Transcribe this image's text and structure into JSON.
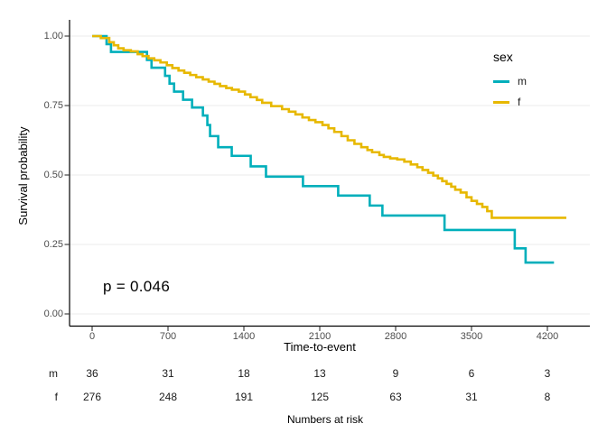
{
  "chart_data": {
    "type": "line",
    "subtype": "kaplan-meier-step-survival",
    "title": "",
    "xlabel": "Time-to-event",
    "ylabel": "Survival probability",
    "xlim": [
      -210,
      4590
    ],
    "ylim": [
      0,
      1
    ],
    "xticks": [
      0,
      700,
      1400,
      2100,
      2800,
      3500,
      4200
    ],
    "yticks": [
      {
        "value": 0.0,
        "label": "0.00"
      },
      {
        "value": 0.25,
        "label": "0.25"
      },
      {
        "value": 0.5,
        "label": "0.50"
      },
      {
        "value": 0.75,
        "label": "0.75"
      },
      {
        "value": 1.0,
        "label": "1.00"
      }
    ],
    "grid": "horizontal-only",
    "annotation": {
      "text": "p = 0.046",
      "t": 100,
      "s": 0.097
    },
    "legend": {
      "title": "sex",
      "position": "right-top"
    },
    "colors": {
      "grid": "#ebebeb",
      "axis": "#000000",
      "tick": "#333333",
      "tick_label": "#4d4d4d"
    },
    "series": [
      {
        "name": "m",
        "color": "#00AFBB",
        "end_t": 4261,
        "points": [
          [
            0,
            1.0
          ],
          [
            133,
            0.971
          ],
          [
            174,
            0.943
          ],
          [
            506,
            0.914
          ],
          [
            548,
            0.886
          ],
          [
            673,
            0.857
          ],
          [
            714,
            0.829
          ],
          [
            756,
            0.8
          ],
          [
            839,
            0.771
          ],
          [
            922,
            0.743
          ],
          [
            1022,
            0.714
          ],
          [
            1063,
            0.68
          ],
          [
            1088,
            0.64
          ],
          [
            1163,
            0.6
          ],
          [
            1288,
            0.569
          ],
          [
            1463,
            0.531
          ],
          [
            1604,
            0.494
          ],
          [
            1945,
            0.46
          ],
          [
            2270,
            0.426
          ],
          [
            2561,
            0.39
          ],
          [
            2678,
            0.354
          ],
          [
            3251,
            0.302
          ],
          [
            3899,
            0.236
          ],
          [
            3999,
            0.185
          ]
        ]
      },
      {
        "name": "f",
        "color": "#E7B800",
        "end_t": 4375,
        "points": [
          [
            0,
            1.0
          ],
          [
            80,
            0.993
          ],
          [
            158,
            0.978
          ],
          [
            200,
            0.967
          ],
          [
            241,
            0.956
          ],
          [
            290,
            0.949
          ],
          [
            357,
            0.945
          ],
          [
            420,
            0.935
          ],
          [
            465,
            0.928
          ],
          [
            520,
            0.92
          ],
          [
            573,
            0.913
          ],
          [
            630,
            0.905
          ],
          [
            689,
            0.895
          ],
          [
            740,
            0.885
          ],
          [
            797,
            0.876
          ],
          [
            850,
            0.868
          ],
          [
            905,
            0.86
          ],
          [
            960,
            0.852
          ],
          [
            1021,
            0.844
          ],
          [
            1075,
            0.836
          ],
          [
            1129,
            0.828
          ],
          [
            1180,
            0.82
          ],
          [
            1237,
            0.813
          ],
          [
            1290,
            0.807
          ],
          [
            1353,
            0.8
          ],
          [
            1410,
            0.79
          ],
          [
            1461,
            0.78
          ],
          [
            1520,
            0.77
          ],
          [
            1569,
            0.76
          ],
          [
            1652,
            0.748
          ],
          [
            1752,
            0.737
          ],
          [
            1815,
            0.728
          ],
          [
            1876,
            0.718
          ],
          [
            1940,
            0.707
          ],
          [
            2000,
            0.698
          ],
          [
            2060,
            0.69
          ],
          [
            2125,
            0.68
          ],
          [
            2180,
            0.668
          ],
          [
            2234,
            0.655
          ],
          [
            2300,
            0.64
          ],
          [
            2358,
            0.625
          ],
          [
            2420,
            0.612
          ],
          [
            2483,
            0.6
          ],
          [
            2540,
            0.59
          ],
          [
            2583,
            0.582
          ],
          [
            2650,
            0.572
          ],
          [
            2691,
            0.565
          ],
          [
            2750,
            0.56
          ],
          [
            2815,
            0.556
          ],
          [
            2880,
            0.548
          ],
          [
            2940,
            0.538
          ],
          [
            3000,
            0.528
          ],
          [
            3048,
            0.518
          ],
          [
            3100,
            0.508
          ],
          [
            3147,
            0.498
          ],
          [
            3190,
            0.488
          ],
          [
            3230,
            0.478
          ],
          [
            3270,
            0.468
          ],
          [
            3313,
            0.458
          ],
          [
            3350,
            0.447
          ],
          [
            3400,
            0.437
          ],
          [
            3454,
            0.42
          ],
          [
            3500,
            0.407
          ],
          [
            3550,
            0.396
          ],
          [
            3600,
            0.385
          ],
          [
            3645,
            0.37
          ],
          [
            3687,
            0.346
          ]
        ]
      }
    ],
    "risk_table": {
      "caption": "Numbers at risk",
      "time_points": [
        0,
        700,
        1400,
        2100,
        2800,
        3500,
        4200
      ],
      "rows": [
        {
          "label": "m",
          "values": [
            "36",
            "31",
            "18",
            "13",
            "9",
            "6",
            "3"
          ]
        },
        {
          "label": "f",
          "values": [
            "276",
            "248",
            "191",
            "125",
            "63",
            "31",
            "8"
          ]
        }
      ]
    }
  }
}
